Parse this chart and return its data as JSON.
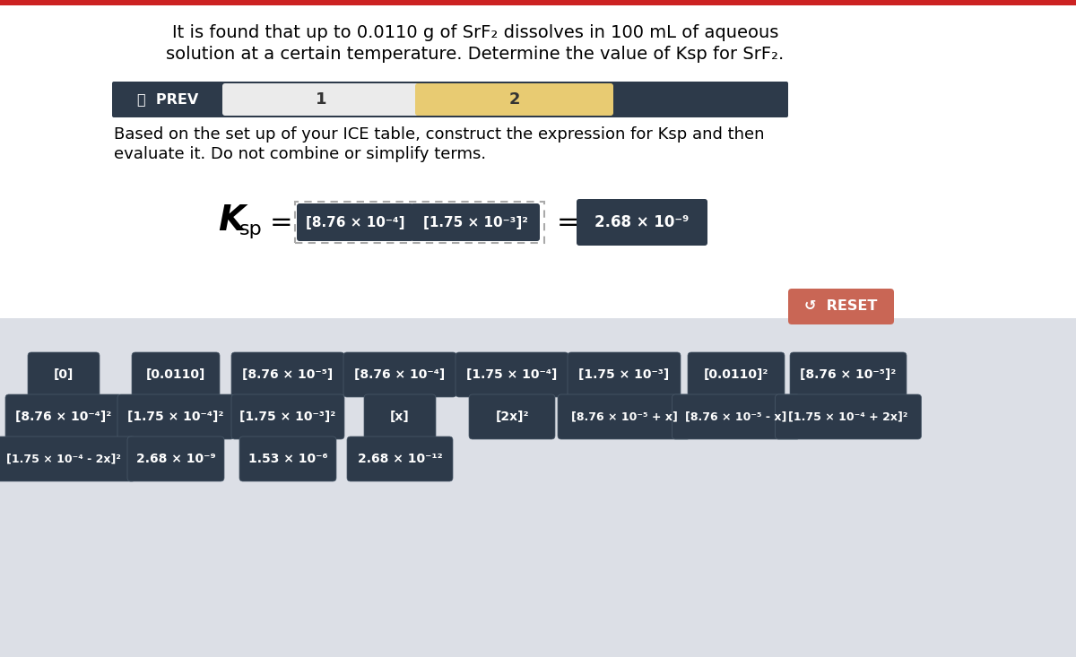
{
  "nav_bg": "#2d3a4a",
  "nav_prev_text": "〈  PREV",
  "nav_tab1_bg": "#ebebeb",
  "nav_tab2_bg": "#e8cb72",
  "bottom_bg": "#dcdfe6",
  "tile_bg": "#2d3a4a",
  "tile_text_color": "#ffffff",
  "reset_bg": "#c96655",
  "reset_text": "↺  RESET",
  "tiles_row1": [
    "[0]",
    "[0.0110]",
    "[8.76 × 10⁻⁵]",
    "[8.76 × 10⁻⁴]",
    "[1.75 × 10⁻⁴]",
    "[1.75 × 10⁻³]",
    "[0.0110]²",
    "[8.76 × 10⁻⁵]²"
  ],
  "tiles_row2": [
    "[8.76 × 10⁻⁴]²",
    "[1.75 × 10⁻⁴]²",
    "[1.75 × 10⁻³]²",
    "[x]",
    "[2x]²",
    "[8.76 × 10⁻⁵ + x]",
    "[8.76 × 10⁻⁵ - x]",
    "[1.75 × 10⁻⁴ + 2x]²"
  ],
  "tiles_row3": [
    "[1.75 × 10⁻⁴ - 2x]²",
    "2.68 × 10⁻⁹",
    "1.53 × 10⁻⁶",
    "2.68 × 10⁻¹²"
  ],
  "white_bg": "#ffffff",
  "top_border_color": "#cc2222",
  "fig_w": 1200,
  "fig_h": 733,
  "dpi": 100
}
